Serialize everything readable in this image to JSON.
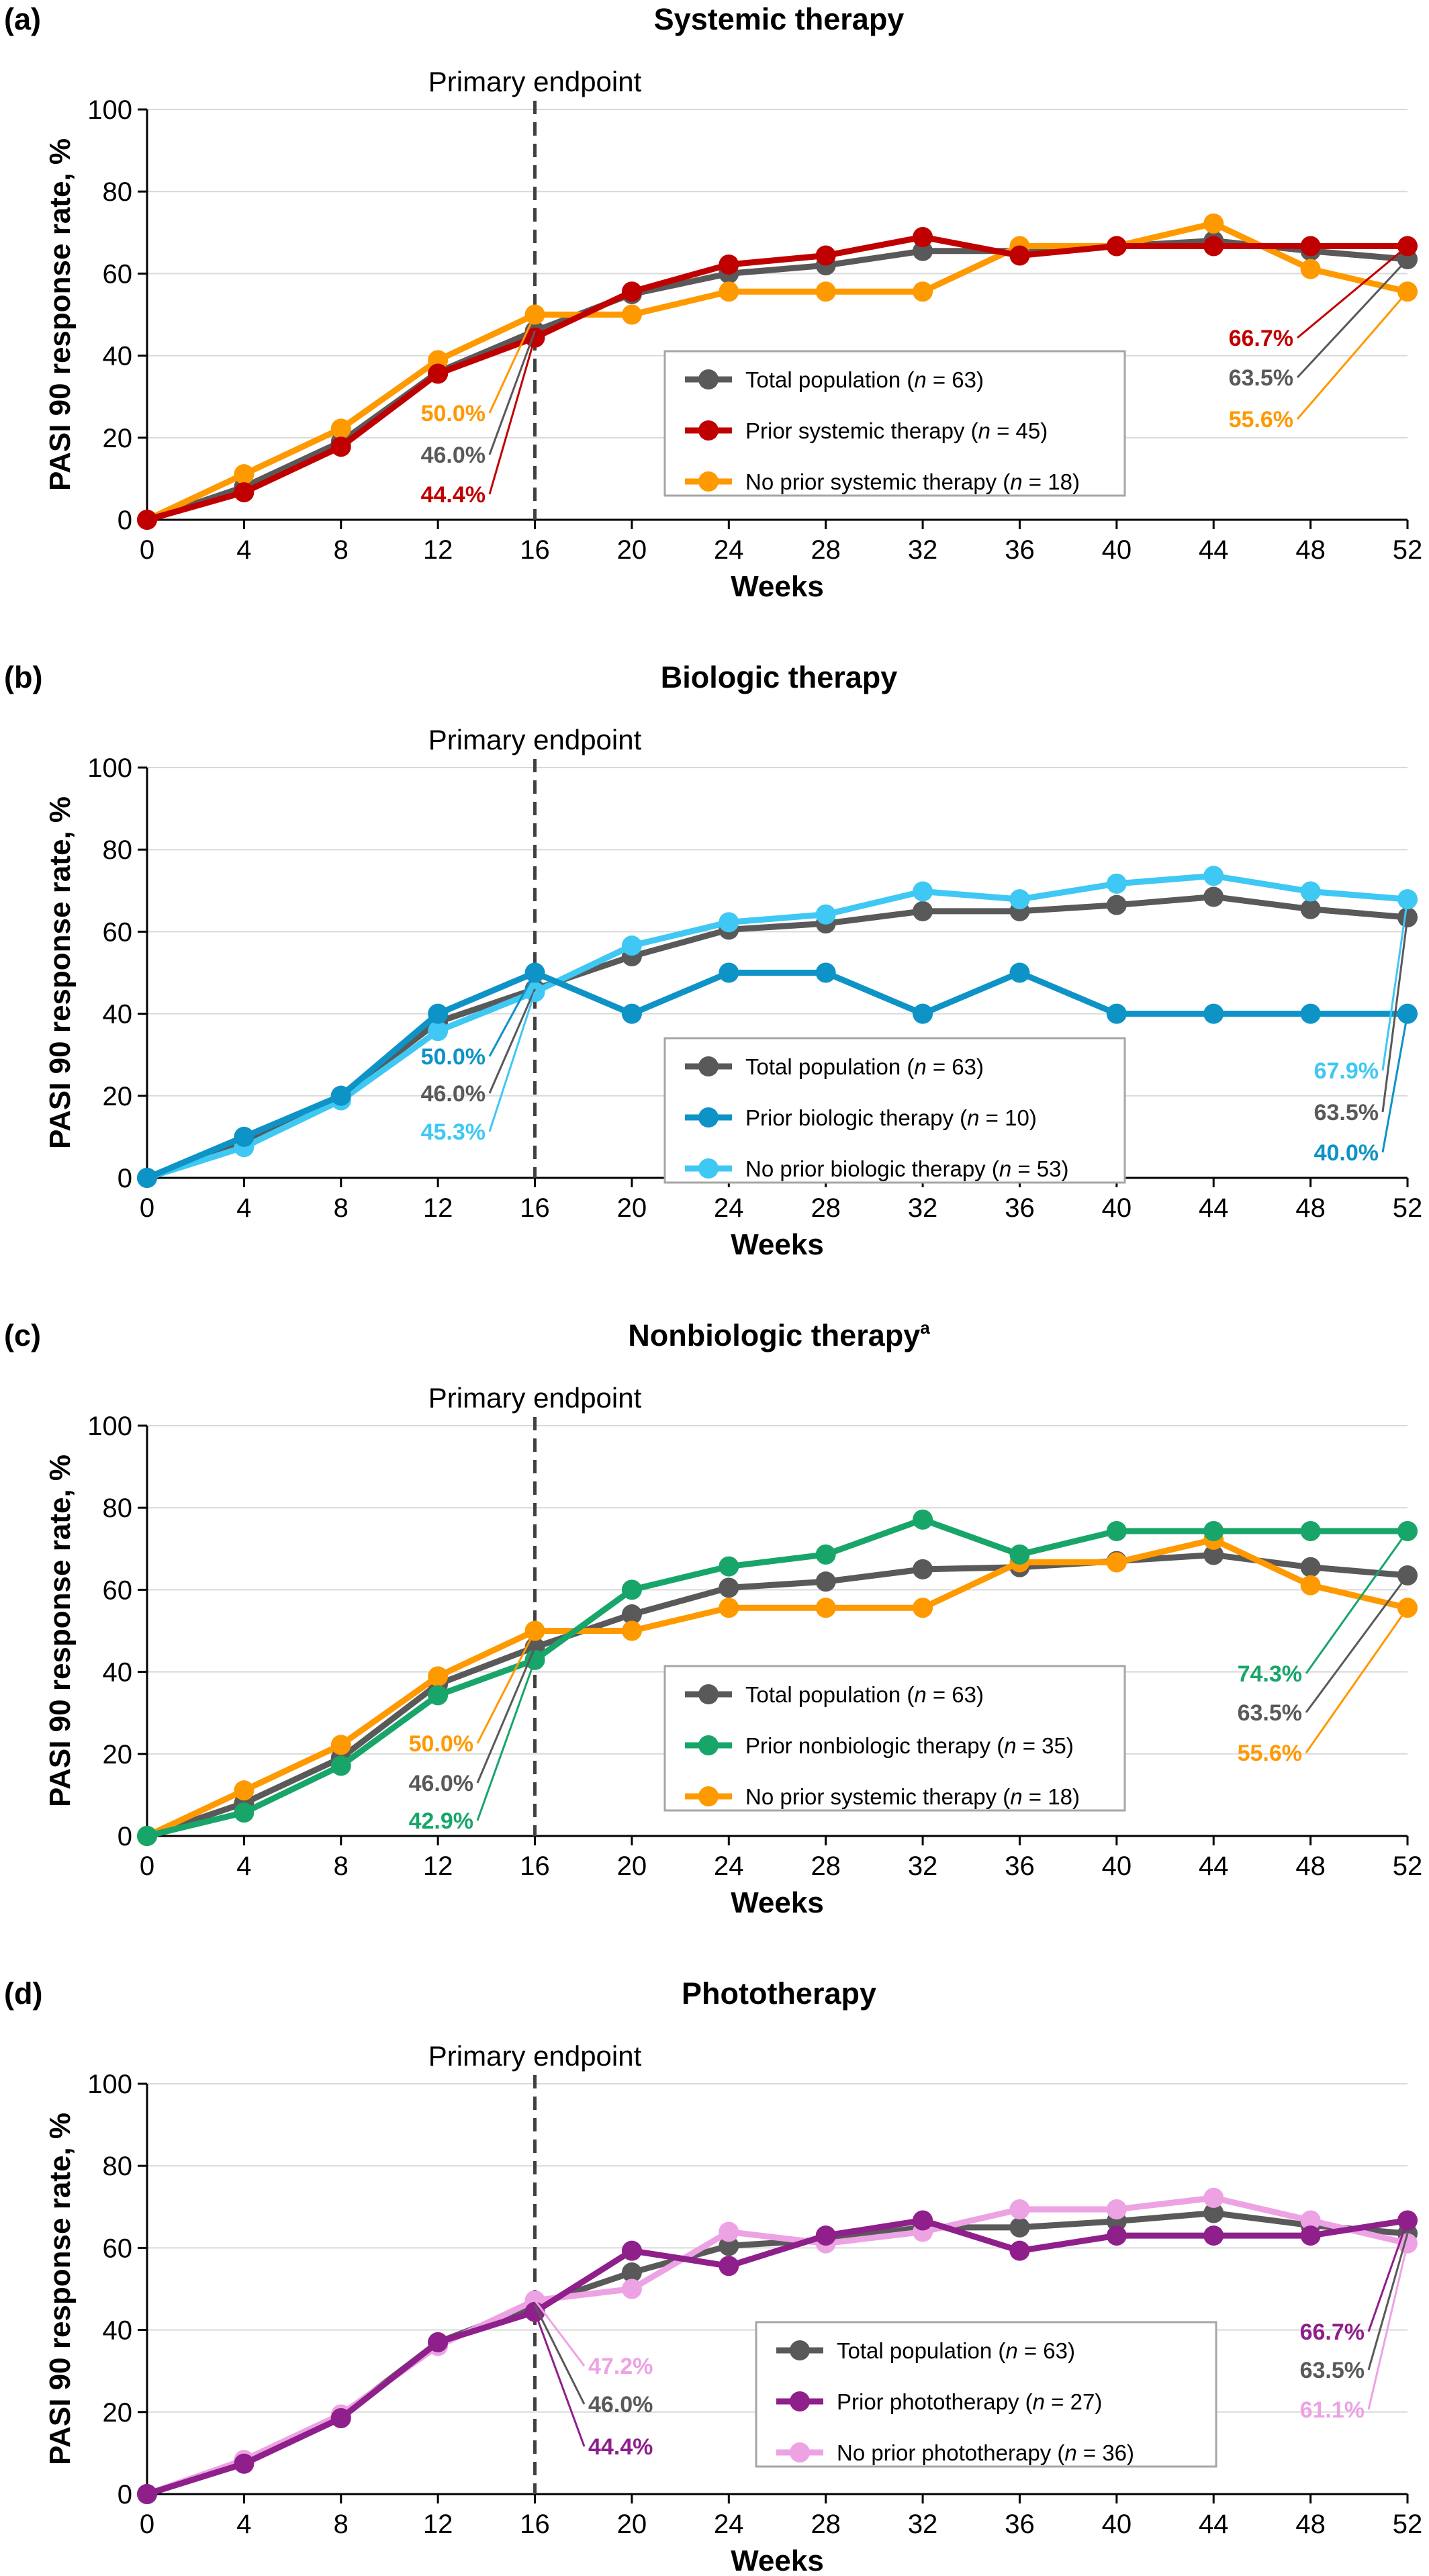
{
  "charts": [
    {
      "label": "(a)",
      "title": "Systemic therapy",
      "title_sup": "",
      "endpoint_label": "Primary endpoint",
      "chart_data": {
        "type": "line",
        "x": [
          0,
          4,
          8,
          12,
          16,
          20,
          24,
          28,
          32,
          36,
          40,
          44,
          48,
          52
        ],
        "xlabel": "Weeks",
        "ylabel": "PASI 90 response rate, %",
        "xlim": [
          0,
          52
        ],
        "ylim": [
          0,
          100
        ],
        "yticks": [
          0,
          20,
          40,
          60,
          80,
          100
        ],
        "grid": "horizontal",
        "legend_position": "center-right",
        "endpoint_x": 16,
        "series": [
          {
            "name": "Total population (n = 63)",
            "label_main": "Total population (",
            "label_italic": "n",
            "label_rest": " = 63)",
            "color": "#595959",
            "values": [
              0,
              8,
              19,
              36,
              46,
              55,
              60,
              62,
              65.5,
              65.5,
              66.7,
              68,
              65.5,
              63.5
            ]
          },
          {
            "name": "Prior systemic therapy (n = 45)",
            "label_main": "Prior systemic therapy (",
            "label_italic": "n",
            "label_rest": " = 45)",
            "color": "#c00000",
            "values": [
              0,
              6.7,
              17.8,
              35.6,
              44.4,
              55.6,
              62.2,
              64.4,
              68.9,
              64.4,
              66.7,
              66.7,
              66.7,
              66.7
            ]
          },
          {
            "name": "No prior systemic therapy (n = 18)",
            "label_main": "No prior systemic therapy (",
            "label_italic": "n",
            "label_rest": " = 18)",
            "color": "#ff9900",
            "values": [
              0,
              11.1,
              22.2,
              38.9,
              50,
              50,
              55.6,
              55.6,
              55.6,
              66.7,
              66.7,
              72.2,
              61.1,
              55.6
            ]
          }
        ],
        "annotations": [
          {
            "text": "50.0%",
            "series": 2,
            "x": 16
          },
          {
            "text": "46.0%",
            "series": 0,
            "x": 16
          },
          {
            "text": "44.4%",
            "series": 1,
            "x": 16
          },
          {
            "text": "66.7%",
            "series": 1,
            "x": 52
          },
          {
            "text": "63.5%",
            "series": 0,
            "x": 52
          },
          {
            "text": "55.6%",
            "series": 2,
            "x": 52
          }
        ]
      }
    },
    {
      "label": "(b)",
      "title": "Biologic therapy",
      "title_sup": "",
      "endpoint_label": "Primary endpoint",
      "chart_data": {
        "type": "line",
        "x": [
          0,
          4,
          8,
          12,
          16,
          20,
          24,
          28,
          32,
          36,
          40,
          44,
          48,
          52
        ],
        "xlabel": "Weeks",
        "ylabel": "PASI 90 response rate, %",
        "xlim": [
          0,
          52
        ],
        "ylim": [
          0,
          100
        ],
        "yticks": [
          0,
          20,
          40,
          60,
          80,
          100
        ],
        "grid": "horizontal",
        "legend_position": "center-right",
        "endpoint_x": 16,
        "series": [
          {
            "name": "Total population (n = 63)",
            "label_main": "Total population (",
            "label_italic": "n",
            "label_rest": " = 63)",
            "color": "#595959",
            "values": [
              0,
              9,
              20,
              38,
              46,
              54,
              60.5,
              62,
              65,
              65,
              66.5,
              68.5,
              65.5,
              63.5
            ]
          },
          {
            "name": "Prior biologic therapy (n = 10)",
            "label_main": "Prior biologic therapy (",
            "label_italic": "n",
            "label_rest": " = 10)",
            "color": "#0e93c7",
            "values": [
              0,
              10,
              20,
              40,
              50,
              40,
              50,
              50,
              40,
              50,
              40,
              40,
              40,
              40
            ]
          },
          {
            "name": "No prior biologic therapy (n = 53)",
            "label_main": "No prior biologic therapy (",
            "label_italic": "n",
            "label_rest": " = 53)",
            "color": "#3ec8f3",
            "values": [
              0,
              7.5,
              18.9,
              35.8,
              45.3,
              56.6,
              62.3,
              64.2,
              69.8,
              67.9,
              71.7,
              73.6,
              69.8,
              67.9
            ]
          }
        ],
        "annotations": [
          {
            "text": "50.0%",
            "series": 1,
            "x": 16
          },
          {
            "text": "46.0%",
            "series": 0,
            "x": 16
          },
          {
            "text": "45.3%",
            "series": 2,
            "x": 16
          },
          {
            "text": "67.9%",
            "series": 2,
            "x": 52
          },
          {
            "text": "63.5%",
            "series": 0,
            "x": 52
          },
          {
            "text": "40.0%",
            "series": 1,
            "x": 52
          }
        ]
      }
    },
    {
      "label": "(c)",
      "title": "Nonbiologic therapy",
      "title_sup": "a",
      "endpoint_label": "Primary endpoint",
      "chart_data": {
        "type": "line",
        "x": [
          0,
          4,
          8,
          12,
          16,
          20,
          24,
          28,
          32,
          36,
          40,
          44,
          48,
          52
        ],
        "xlabel": "Weeks",
        "ylabel": "PASI 90 response rate, %",
        "xlim": [
          0,
          52
        ],
        "ylim": [
          0,
          100
        ],
        "yticks": [
          0,
          20,
          40,
          60,
          80,
          100
        ],
        "grid": "horizontal",
        "legend_position": "center-right",
        "endpoint_x": 16,
        "series": [
          {
            "name": "Total population (n = 63)",
            "label_main": "Total population (",
            "label_italic": "n",
            "label_rest": " = 63)",
            "color": "#595959",
            "values": [
              0,
              8,
              19,
              37,
              46,
              54,
              60.5,
              62,
              65,
              65.5,
              67,
              68.5,
              65.5,
              63.5
            ]
          },
          {
            "name": "Prior nonbiologic therapy (n = 35)",
            "label_main": "Prior nonbiologic therapy (",
            "label_italic": "n",
            "label_rest": " = 35)",
            "color": "#18a56a",
            "values": [
              0,
              5.7,
              17.1,
              34.3,
              42.9,
              60,
              65.7,
              68.6,
              77.1,
              68.6,
              74.3,
              74.3,
              74.3,
              74.3
            ]
          },
          {
            "name": "No prior systemic therapy (n = 18)",
            "label_main": "No prior systemic therapy (",
            "label_italic": "n",
            "label_rest": " = 18)",
            "color": "#ff9900",
            "values": [
              0,
              11.1,
              22.2,
              38.9,
              50,
              50,
              55.6,
              55.6,
              55.6,
              66.7,
              66.7,
              72.2,
              61.1,
              55.6
            ]
          }
        ],
        "annotations": [
          {
            "text": "50.0%",
            "series": 2,
            "x": 16
          },
          {
            "text": "46.0%",
            "series": 0,
            "x": 16
          },
          {
            "text": "42.9%",
            "series": 1,
            "x": 16
          },
          {
            "text": "74.3%",
            "series": 1,
            "x": 52
          },
          {
            "text": "63.5%",
            "series": 0,
            "x": 52
          },
          {
            "text": "55.6%",
            "series": 2,
            "x": 52
          }
        ]
      }
    },
    {
      "label": "(d)",
      "title": "Phototherapy",
      "title_sup": "",
      "endpoint_label": "Primary endpoint",
      "chart_data": {
        "type": "line",
        "x": [
          0,
          4,
          8,
          12,
          16,
          20,
          24,
          28,
          32,
          36,
          40,
          44,
          48,
          52
        ],
        "xlabel": "Weeks",
        "ylabel": "PASI 90 response rate, %",
        "xlim": [
          0,
          52
        ],
        "ylim": [
          0,
          100
        ],
        "yticks": [
          0,
          20,
          40,
          60,
          80,
          100
        ],
        "grid": "horizontal",
        "legend_position": "center-right",
        "endpoint_x": 16,
        "series": [
          {
            "name": "Total population (n = 63)",
            "label_main": "Total population (",
            "label_italic": "n",
            "label_rest": " = 63)",
            "color": "#595959",
            "values": [
              0,
              8,
              19,
              37,
              46,
              54,
              60.5,
              62,
              65,
              65,
              66.5,
              68.5,
              65.5,
              63.5
            ]
          },
          {
            "name": "Prior phototherapy (n = 27)",
            "label_main": "Prior phototherapy (",
            "label_italic": "n",
            "label_rest": " = 27)",
            "color": "#8e1f8b",
            "values": [
              0,
              7.4,
              18.5,
              37,
              44.4,
              59.3,
              55.6,
              63,
              66.7,
              59.3,
              63,
              63,
              63,
              66.7
            ]
          },
          {
            "name": "No prior phototherapy (n = 36)",
            "label_main": "No prior phototherapy (",
            "label_italic": "n",
            "label_rest": " = 36)",
            "color": "#eda2e4",
            "values": [
              0,
              8.3,
              19.4,
              36.1,
              47.2,
              50,
              63.9,
              61.1,
              63.9,
              69.4,
              69.4,
              72.2,
              66.7,
              61.1
            ]
          }
        ],
        "annotations": [
          {
            "text": "47.2%",
            "series": 2,
            "x": 16
          },
          {
            "text": "46.0%",
            "series": 0,
            "x": 16
          },
          {
            "text": "44.4%",
            "series": 1,
            "x": 16
          },
          {
            "text": "66.7%",
            "series": 1,
            "x": 52
          },
          {
            "text": "63.5%",
            "series": 0,
            "x": 52
          },
          {
            "text": "61.1%",
            "series": 2,
            "x": 52
          }
        ]
      }
    }
  ]
}
